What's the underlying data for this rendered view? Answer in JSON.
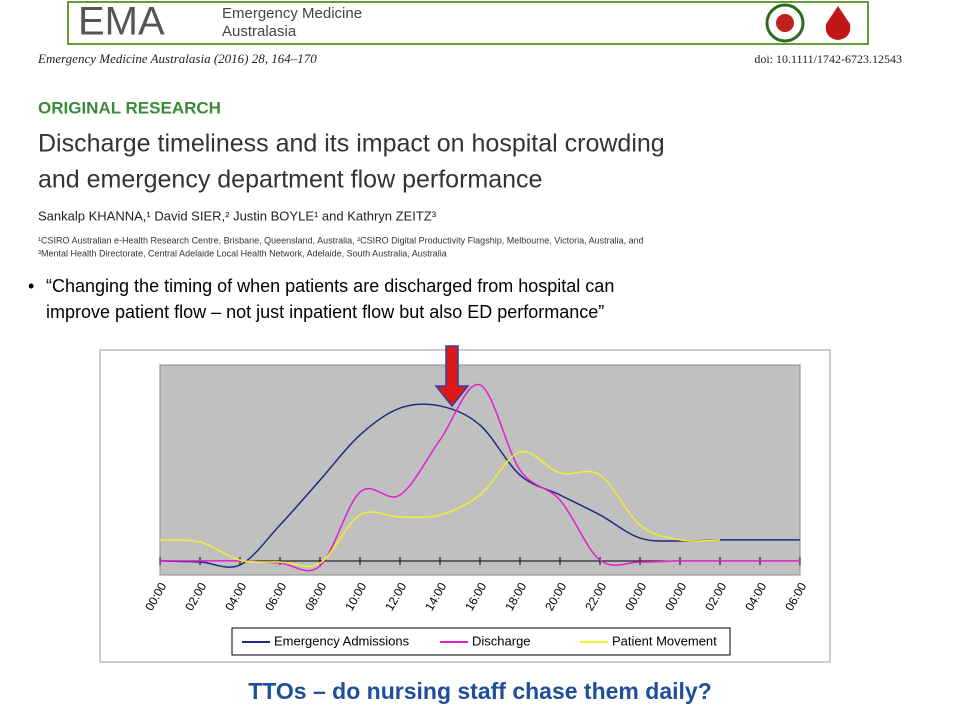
{
  "journal": {
    "logo": "EMA",
    "name_line1": "Emergency Medicine",
    "name_line2": "Australasia",
    "citation": "Emergency Medicine Australasia (2016) 28, 164–170",
    "doi": "doi: 10.1111/1742-6723.12543",
    "section": "ORIGINAL RESEARCH",
    "title_line1": "Discharge timeliness and its impact on hospital crowding",
    "title_line2": "and emergency department flow performance",
    "authors": "Sankalp KHANNA,¹ David SIER,² Justin BOYLE¹ and Kathryn ZEITZ³",
    "affiliation_line1": "¹CSIRO Australian e-Health Research Centre, Brisbane, Queensland, Australia, ²CSIRO Digital Productivity Flagship, Melbourne, Victoria, Australia, and",
    "affiliation_line2": "³Mental Health Directorate, Central Adelaide Local Health Network, Adelaide, South Australia, Australia"
  },
  "bullet": {
    "line1": "“Changing the timing of when patients are discharged from hospital can",
    "line2": "improve patient flow – not just inpatient flow but also ED performance”"
  },
  "footer": "TTOs – do nursing staff chase them daily?",
  "chart_data": {
    "type": "line",
    "categories": [
      "00:00",
      "02:00",
      "04:00",
      "06:00",
      "08:00",
      "10:00",
      "12:00",
      "14:00",
      "16:00",
      "18:00",
      "20:00",
      "22:00",
      "00:00",
      "00:00",
      "02:00",
      "04:00",
      "06:00"
    ],
    "ylim": [
      0,
      100
    ],
    "legend": "bottom",
    "series": [
      {
        "name": "Emergency Admissions",
        "color": "#1f2a7a",
        "values": [
          6.7,
          6.2,
          4.8,
          23.8,
          45.2,
          66.7,
          79.5,
          80.5,
          71.4,
          47.6,
          38.1,
          28.6,
          17.6,
          16.2,
          16.7,
          16.7,
          16.7
        ]
      },
      {
        "name": "Discharge",
        "color": "#e020d0",
        "values": [
          6.7,
          6.7,
          6.7,
          5.7,
          4.3,
          39.5,
          38.1,
          64.3,
          90.5,
          50,
          35.7,
          7.1,
          6.2,
          6.7,
          6.7,
          6.7,
          6.7
        ]
      },
      {
        "name": "Patient Movement",
        "color": "#f0f030",
        "values": [
          16.7,
          15.7,
          7.1,
          6.2,
          5.7,
          28.6,
          27.6,
          28.6,
          38.1,
          58.6,
          48.6,
          47.6,
          23.8,
          16.7,
          16.7,
          null,
          null
        ]
      }
    ]
  }
}
